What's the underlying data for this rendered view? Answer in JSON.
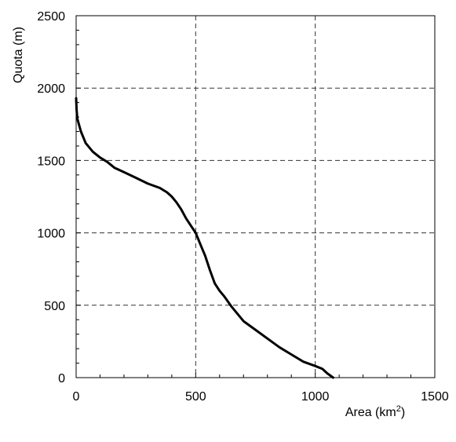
{
  "chart_data": {
    "type": "line",
    "title": "",
    "xlabel": "Area (km",
    "xlabel_sup": "2",
    "xlabel_close": ")",
    "ylabel": "Quota (m)",
    "xlim": [
      0,
      1500
    ],
    "ylim": [
      0,
      2500
    ],
    "xticks": [
      0,
      500,
      1000,
      1500
    ],
    "yticks": [
      0,
      500,
      1000,
      1500,
      2000,
      2500
    ],
    "grid": true,
    "legend": "none",
    "line_color": "#000000",
    "series": [
      {
        "x": [
          0,
          2,
          5,
          10,
          20,
          40,
          70,
          100,
          130,
          160,
          200,
          250,
          300,
          350,
          380,
          400,
          420,
          440,
          460,
          480,
          500,
          520,
          540,
          560,
          580,
          600,
          620,
          650,
          680,
          700,
          750,
          800,
          850,
          900,
          950,
          1000,
          1030,
          1050,
          1075
        ],
        "y": [
          1930,
          1850,
          1790,
          1760,
          1700,
          1620,
          1560,
          1520,
          1490,
          1450,
          1420,
          1380,
          1340,
          1310,
          1280,
          1250,
          1210,
          1160,
          1100,
          1050,
          1000,
          920,
          840,
          740,
          650,
          600,
          560,
          490,
          430,
          390,
          330,
          270,
          210,
          160,
          110,
          80,
          60,
          30,
          0
        ]
      }
    ]
  }
}
